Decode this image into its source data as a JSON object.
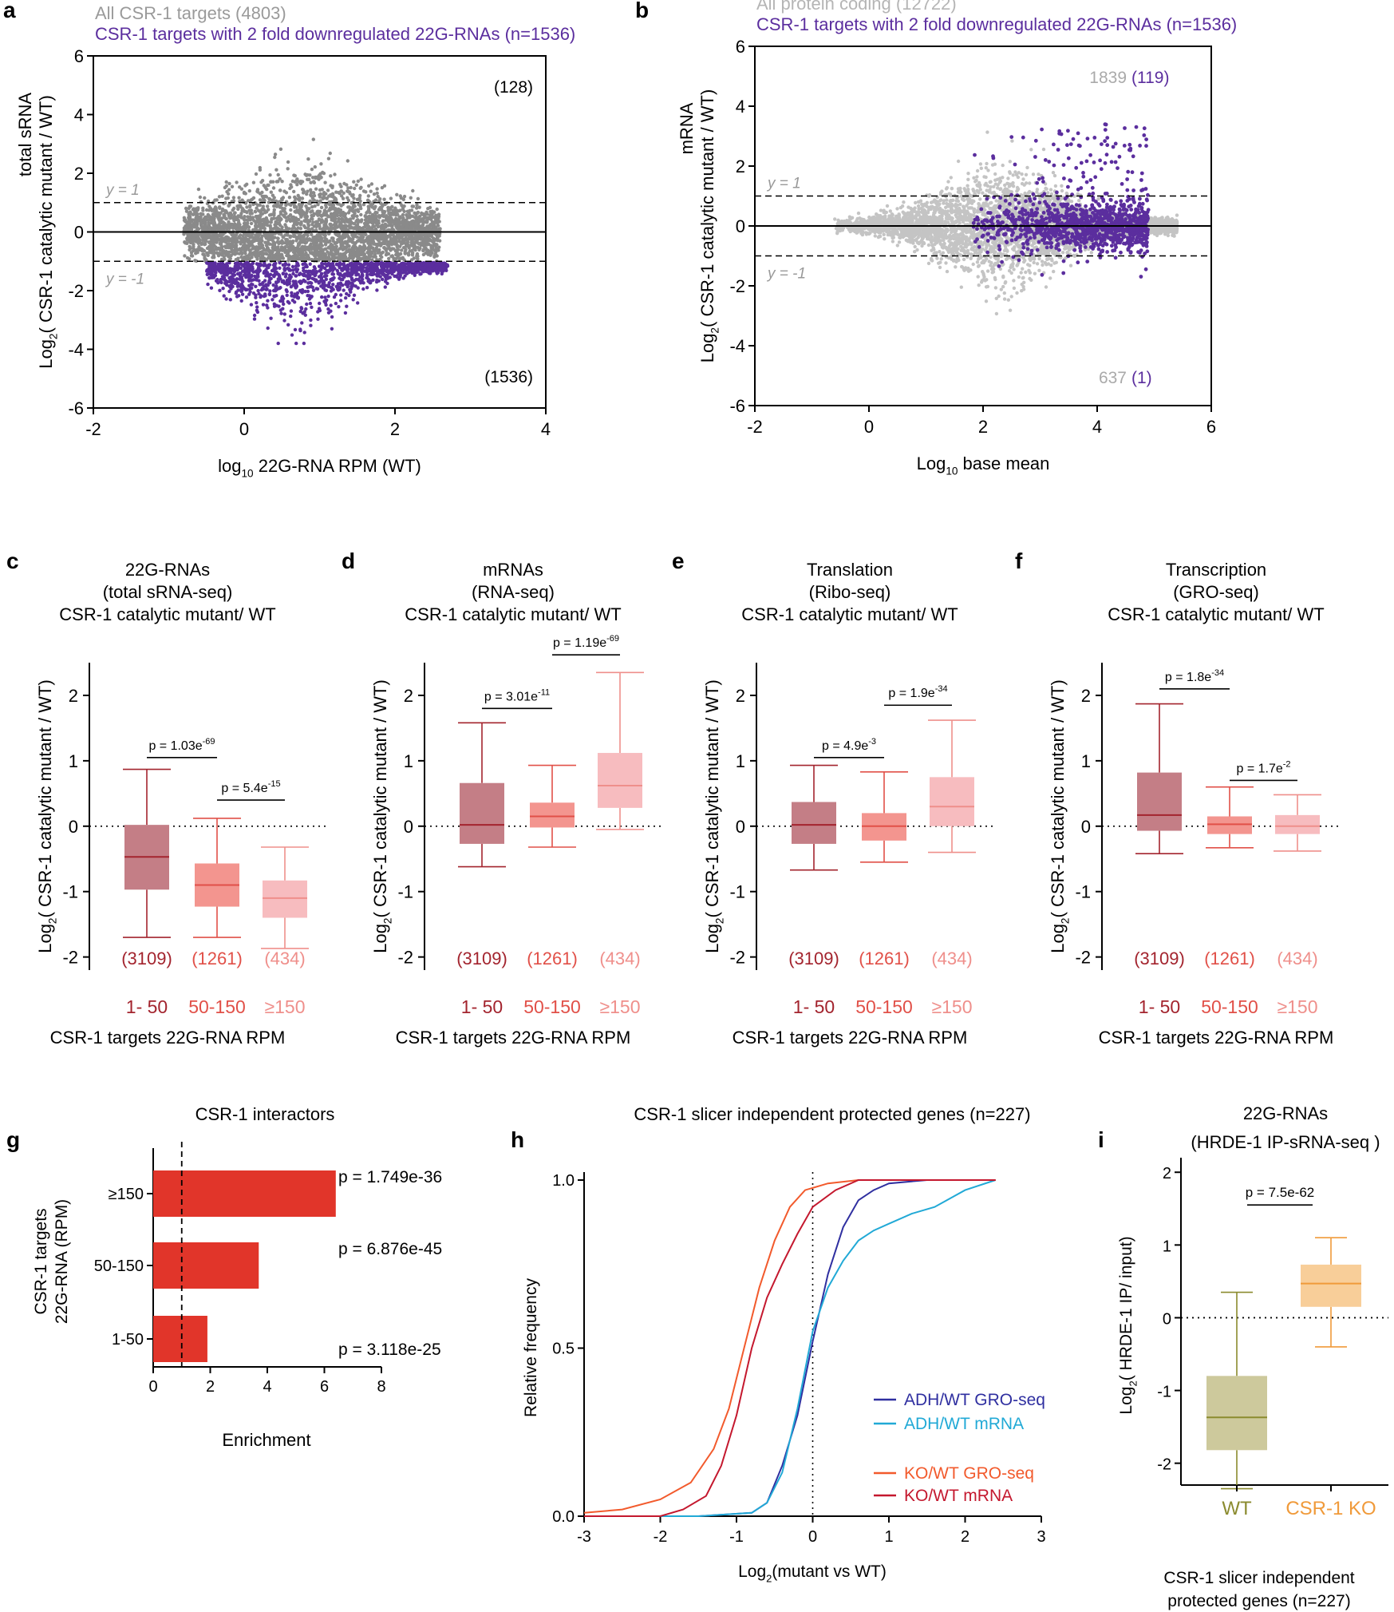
{
  "colors": {
    "gray_points": "#8a8a8a",
    "light_gray_points": "#c4c4c4",
    "purple": "#5b2e9e",
    "box_dark": "#c47e86",
    "box_mid": "#f3958f",
    "box_light": "#f7bcbf",
    "whisker_dark": "#a3242e",
    "whisker_mid": "#e15048",
    "whisker_light": "#ef8f8b",
    "bar_red": "#e1352a",
    "olive": "#8b8b2f",
    "olive_fill": "#cdc99c",
    "orange": "#f09a3a",
    "orange_fill": "#f8ce99",
    "adh_gro": "#2f2fa0",
    "adh_mrna": "#21a9d6",
    "ko_gro": "#f25a2c",
    "ko_mrna": "#c4182e"
  },
  "panels": {
    "a": "a",
    "b": "b",
    "c": "c",
    "d": "d",
    "e": "e",
    "f": "f",
    "g": "g",
    "h": "h",
    "i": "i"
  },
  "chart_data": [
    {
      "id": "a",
      "type": "scatter",
      "legend": [
        "All CSR-1 targets (4803)",
        "CSR-1 targets with 2 fold downregulated 22G-RNAs (n=1536)"
      ],
      "ylabel_l1": "total sRNA",
      "ylabel_l2": "Log2( CSR-1 catalytic mutant / WT)",
      "xlabel": "log10 22G-RNA RPM (WT)",
      "xlim": [
        -2,
        4
      ],
      "ylim": [
        -6,
        6
      ],
      "xticks": [
        -2,
        0,
        2,
        4
      ],
      "yticks": [
        -6,
        -4,
        -2,
        0,
        2,
        4,
        6
      ],
      "hlines": {
        "solid": 0,
        "dashed": [
          1,
          -1
        ]
      },
      "line_labels": [
        "y = 1",
        "y = -1"
      ],
      "count_top": "(128)",
      "count_bottom": "(1536)",
      "series": [
        {
          "name": "All CSR-1 targets",
          "n": 4803,
          "x_range": [
            -0.8,
            2.6
          ],
          "y_mean": 0.0,
          "y_sd": 0.55,
          "y_min": -1.0
        },
        {
          "name": "2 fold downregulated",
          "n": 1536,
          "x_range": [
            -0.5,
            2.7
          ],
          "y_range": [
            -3.8,
            -1.0
          ]
        }
      ]
    },
    {
      "id": "b",
      "type": "scatter",
      "legend": [
        "All protein coding (12722)",
        "CSR-1 targets with 2 fold downregulated 22G-RNAs (n=1536)"
      ],
      "ylabel_l1": "mRNA",
      "ylabel_l2": "Log2( CSR-1 catalytic mutant / WT)",
      "xlabel": "Log10 base mean",
      "xlim": [
        -2,
        6
      ],
      "ylim": [
        -6,
        6
      ],
      "xticks": [
        -2,
        0,
        2,
        4,
        6
      ],
      "yticks": [
        -6,
        -4,
        -2,
        0,
        2,
        4,
        6
      ],
      "hlines": {
        "solid": 0,
        "dashed": [
          1,
          -1
        ]
      },
      "line_labels": [
        "y = 1",
        "y = -1"
      ],
      "count_top_gray": "1839",
      "count_top_purple": "(119)",
      "count_bottom_gray": "637",
      "count_bottom_purple": "(1)",
      "series": [
        {
          "name": "All protein coding",
          "n": 12722,
          "x_range": [
            -0.6,
            5.5
          ],
          "y_range": [
            -3.3,
            3.2
          ]
        },
        {
          "name": "CSR-1 targets 2 fold down",
          "n": 1536,
          "x_range": [
            1.8,
            5.0
          ],
          "y_range": [
            -1.8,
            3.8
          ]
        }
      ]
    },
    {
      "id": "c",
      "type": "box",
      "title": [
        "22G-RNAs",
        "(total sRNA-seq)",
        "CSR-1 catalytic mutant/ WT"
      ],
      "ylabel": "Log2( CSR-1 catalytic mutant / WT)",
      "xlabel": "CSR-1 targets 22G-RNA RPM",
      "ylim": [
        -2.2,
        2.5
      ],
      "yticks": [
        -2,
        -1,
        0,
        1,
        2
      ],
      "categories": [
        "1- 50",
        "50-150",
        "≥150"
      ],
      "counts": [
        "(3109)",
        "(1261)",
        "(434)"
      ],
      "boxes": [
        {
          "min": -1.7,
          "q1": -0.97,
          "median": -0.47,
          "q3": 0.02,
          "max": 0.87
        },
        {
          "min": -1.7,
          "q1": -1.23,
          "median": -0.9,
          "q3": -0.57,
          "max": 0.12
        },
        {
          "min": -1.87,
          "q1": -1.4,
          "median": -1.1,
          "q3": -0.83,
          "max": -0.32
        }
      ],
      "pvalues": [
        {
          "label": "p = 1.03e",
          "exp": "-69",
          "from": 0,
          "to": 1,
          "y": 1.05
        },
        {
          "label": "p = 5.4e",
          "exp": "-15",
          "from": 1,
          "to": 2,
          "y": 0.4
        }
      ]
    },
    {
      "id": "d",
      "type": "box",
      "title": [
        "mRNAs",
        "(RNA-seq)",
        "CSR-1 catalytic mutant/ WT"
      ],
      "ylabel": "Log2( CSR-1 catalytic mutant / WT)",
      "xlabel": "CSR-1 targets 22G-RNA RPM",
      "ylim": [
        -2.2,
        2.5
      ],
      "yticks": [
        -2,
        -1,
        0,
        1,
        2
      ],
      "categories": [
        "1- 50",
        "50-150",
        "≥150"
      ],
      "counts": [
        "(3109)",
        "(1261)",
        "(434)"
      ],
      "boxes": [
        {
          "min": -0.62,
          "q1": -0.27,
          "median": 0.02,
          "q3": 0.66,
          "max": 1.58
        },
        {
          "min": -0.32,
          "q1": -0.02,
          "median": 0.15,
          "q3": 0.36,
          "max": 0.93
        },
        {
          "min": -0.05,
          "q1": 0.28,
          "median": 0.62,
          "q3": 1.12,
          "max": 2.35
        }
      ],
      "pvalues": [
        {
          "label": "p = 3.01e",
          "exp": "-11",
          "from": 0,
          "to": 1,
          "y": 1.8
        },
        {
          "label": "p = 1.19e",
          "exp": "-69",
          "from": 1,
          "to": 2,
          "y": 2.62
        }
      ]
    },
    {
      "id": "e",
      "type": "box",
      "title": [
        "Translation",
        "(Ribo-seq)",
        "CSR-1 catalytic mutant/ WT"
      ],
      "ylabel": "Log2( CSR-1 catalytic mutant / WT)",
      "xlabel": "CSR-1 targets 22G-RNA RPM",
      "ylim": [
        -2.2,
        2.5
      ],
      "yticks": [
        -2,
        -1,
        0,
        1,
        2
      ],
      "categories": [
        "1- 50",
        "50-150",
        "≥150"
      ],
      "counts": [
        "(3109)",
        "(1261)",
        "(434)"
      ],
      "boxes": [
        {
          "min": -0.67,
          "q1": -0.27,
          "median": 0.02,
          "q3": 0.37,
          "max": 0.93
        },
        {
          "min": -0.55,
          "q1": -0.22,
          "median": 0.0,
          "q3": 0.2,
          "max": 0.83
        },
        {
          "min": -0.4,
          "q1": 0.0,
          "median": 0.3,
          "q3": 0.75,
          "max": 1.62
        }
      ],
      "pvalues": [
        {
          "label": "p = 4.9e",
          "exp": "-3",
          "from": 0,
          "to": 1,
          "y": 1.05
        },
        {
          "label": "p = 1.9e",
          "exp": "-34",
          "from": 1,
          "to": 2,
          "y": 1.85
        }
      ]
    },
    {
      "id": "f",
      "type": "box",
      "title": [
        "Transcription",
        "(GRO-seq)",
        "CSR-1 catalytic mutant/ WT"
      ],
      "ylabel": "Log2( CSR-1 catalytic mutant / WT)",
      "xlabel": "CSR-1 targets 22G-RNA RPM",
      "ylim": [
        -2.2,
        2.5
      ],
      "yticks": [
        -2,
        -1,
        0,
        1,
        2
      ],
      "categories": [
        "1- 50",
        "50-150",
        "≥150"
      ],
      "counts": [
        "(3109)",
        "(1261)",
        "(434)"
      ],
      "boxes": [
        {
          "min": -0.42,
          "q1": -0.07,
          "median": 0.17,
          "q3": 0.82,
          "max": 1.87
        },
        {
          "min": -0.33,
          "q1": -0.12,
          "median": 0.03,
          "q3": 0.15,
          "max": 0.6
        },
        {
          "min": -0.38,
          "q1": -0.12,
          "median": 0.0,
          "q3": 0.17,
          "max": 0.48
        }
      ],
      "pvalues": [
        {
          "label": "p = 1.8e",
          "exp": "-34",
          "from": 0,
          "to": 1,
          "y": 2.1
        },
        {
          "label": "p = 1.7e",
          "exp": "-2",
          "from": 1,
          "to": 2,
          "y": 0.7
        }
      ]
    },
    {
      "id": "g",
      "type": "bar",
      "orientation": "horizontal",
      "title": "CSR-1 interactors",
      "ylabel": [
        "CSR-1 targets",
        "22G-RNA (RPM)"
      ],
      "xlabel": "Enrichment",
      "xlim": [
        0,
        8
      ],
      "xticks": [
        0,
        2,
        4,
        6,
        8
      ],
      "categories": [
        "≥150",
        "50-150",
        "1-50"
      ],
      "values": [
        6.4,
        3.7,
        1.9
      ],
      "pvalues": [
        "p = 1.749e-36",
        "p = 6.876e-45",
        "p = 3.118e-25"
      ],
      "reference_line": 1
    },
    {
      "id": "h",
      "type": "line",
      "title": "CSR-1 slicer independent protected genes (n=227)",
      "ylabel": "Relative frequency",
      "xlabel": "Log2(mutant vs WT)",
      "xlim": [
        -3,
        3
      ],
      "ylim": [
        0,
        1
      ],
      "xticks": [
        -3,
        -2,
        -1,
        0,
        1,
        2,
        3
      ],
      "yticks": [
        "0.0",
        "0.5",
        "1.0"
      ],
      "series": [
        {
          "name": "ADH/WT GRO-seq",
          "x": [
            -3,
            -1.5,
            -0.8,
            -0.6,
            -0.4,
            -0.2,
            0,
            0.2,
            0.4,
            0.6,
            0.8,
            1.0,
            1.5,
            2.4
          ],
          "y": [
            0,
            0,
            0.01,
            0.04,
            0.15,
            0.3,
            0.52,
            0.72,
            0.86,
            0.94,
            0.97,
            0.99,
            1.0,
            1.0
          ]
        },
        {
          "name": "ADH/WT mRNA",
          "x": [
            -3,
            -1.5,
            -0.8,
            -0.6,
            -0.4,
            -0.2,
            0,
            0.2,
            0.4,
            0.6,
            0.8,
            1.0,
            1.3,
            1.6,
            2.0,
            2.4
          ],
          "y": [
            0,
            0,
            0.01,
            0.04,
            0.13,
            0.32,
            0.55,
            0.68,
            0.76,
            0.82,
            0.85,
            0.87,
            0.9,
            0.92,
            0.97,
            1.0
          ]
        },
        {
          "name": "KO/WT GRO-seq",
          "x": [
            -3,
            -2.5,
            -2.0,
            -1.6,
            -1.3,
            -1.1,
            -0.9,
            -0.7,
            -0.5,
            -0.3,
            -0.1,
            0.2,
            0.6,
            1.0,
            2.4
          ],
          "y": [
            0.01,
            0.02,
            0.05,
            0.1,
            0.2,
            0.32,
            0.5,
            0.68,
            0.82,
            0.92,
            0.97,
            0.99,
            1.0,
            1.0,
            1.0
          ]
        },
        {
          "name": "KO/WT mRNA",
          "x": [
            -3,
            -2.0,
            -1.7,
            -1.4,
            -1.2,
            -1.0,
            -0.8,
            -0.6,
            -0.4,
            -0.2,
            0,
            0.3,
            0.6,
            1.0,
            2.4
          ],
          "y": [
            0,
            0,
            0.02,
            0.06,
            0.15,
            0.3,
            0.5,
            0.65,
            0.75,
            0.84,
            0.92,
            0.97,
            1.0,
            1.0,
            1.0
          ]
        }
      ],
      "vline": 0
    },
    {
      "id": "i",
      "type": "box",
      "title": [
        "22G-RNAs",
        "(HRDE-1 IP-sRNA-seq )"
      ],
      "ylabel": "Log2( HRDE-1 IP/ input)",
      "xlabel": [
        "CSR-1 slicer independent",
        "protected genes (n=227)"
      ],
      "ylim": [
        -2.3,
        2.2
      ],
      "yticks": [
        -2,
        -1,
        0,
        1,
        2
      ],
      "categories": [
        "WT",
        "CSR-1 KO"
      ],
      "boxes": [
        {
          "min": -2.35,
          "q1": -1.82,
          "median": -1.37,
          "q3": -0.8,
          "max": 0.35
        },
        {
          "min": -0.4,
          "q1": 0.15,
          "median": 0.47,
          "q3": 0.73,
          "max": 1.1
        }
      ],
      "pvalue": {
        "label": "p = 7.5e-62",
        "y": 1.55
      }
    }
  ]
}
